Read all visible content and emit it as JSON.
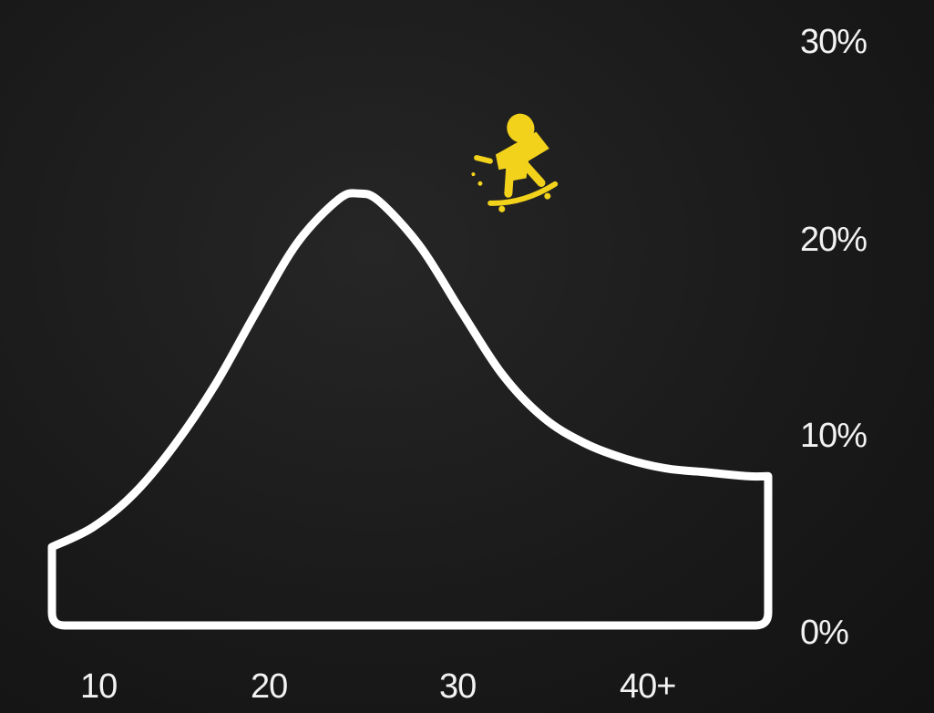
{
  "chart_data": {
    "type": "area",
    "title": "",
    "xlabel": "",
    "ylabel": "",
    "x_tick_labels": [
      "10",
      "20",
      "30",
      "40+"
    ],
    "y_tick_labels": [
      "30%",
      "20%",
      "10%",
      "0%"
    ],
    "ylim": [
      0,
      30
    ],
    "xlim": [
      10,
      45
    ],
    "grid": false,
    "legend": "none",
    "series": [
      {
        "x": [
          10,
          12,
          14,
          16,
          18,
          20,
          22,
          24,
          25,
          26,
          28,
          30,
          32,
          34,
          36,
          38,
          40,
          42,
          44,
          45
        ],
        "values": [
          4,
          5,
          6.7,
          9.2,
          12.3,
          16,
          19.5,
          21.7,
          22,
          21.6,
          19.3,
          16,
          12.8,
          10.6,
          9.3,
          8.5,
          8,
          7.8,
          7.6,
          7.6
        ]
      }
    ],
    "colors": {
      "background": "#1b1b1b",
      "curve": "#ffffff",
      "text": "#f2f2f2",
      "accent": "#f2d21b"
    },
    "icon": "skateboarder-icon"
  }
}
